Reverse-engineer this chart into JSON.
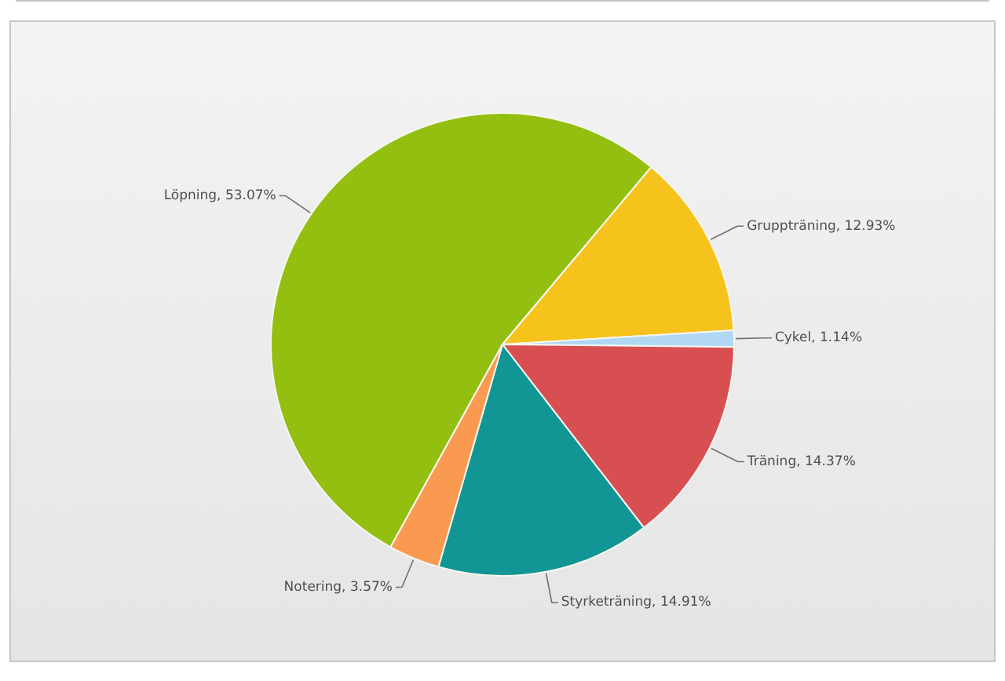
{
  "chart_data": {
    "type": "pie",
    "categories": [
      "Löpning",
      "Gruppträning",
      "Cykel",
      "Träning",
      "Styrketräning",
      "Notering"
    ],
    "values": [
      53.07,
      12.93,
      1.14,
      14.37,
      14.91,
      3.57
    ],
    "colors": [
      "#93bf10",
      "#f6c21c",
      "#b0d8f5",
      "#d84f52",
      "#119595",
      "#f99a50"
    ],
    "value_labels": [
      "53.07%",
      "12.93%",
      "1.14%",
      "14.37%",
      "14.91%",
      "3.57%"
    ],
    "legend": false
  }
}
